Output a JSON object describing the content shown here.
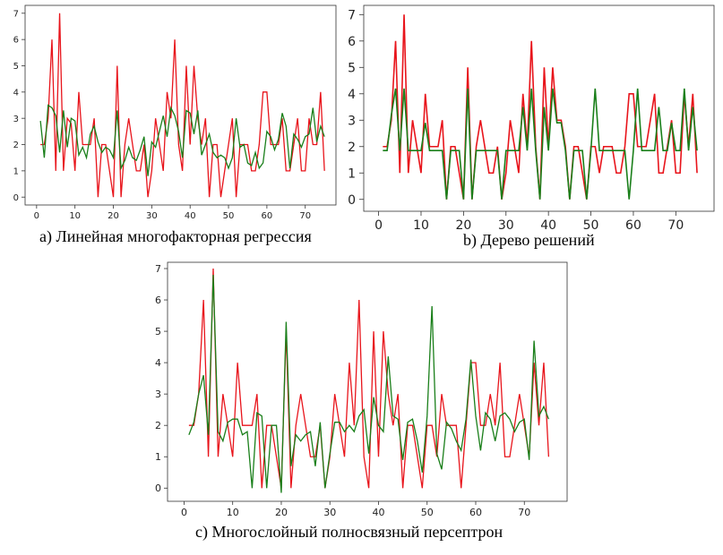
{
  "colors": {
    "actual": "#e8141b",
    "predicted": "#1a7f1a"
  },
  "chart_data": [
    {
      "type": "line",
      "caption": "a) Линейная многофакторная регрессия",
      "xlim": [
        -3,
        78
      ],
      "ylim": [
        -0.3,
        7.3
      ],
      "xticks": [
        0,
        10,
        20,
        30,
        40,
        50,
        60,
        70
      ],
      "yticks": [
        0,
        1,
        2,
        3,
        4,
        5,
        6,
        7
      ],
      "grid": false,
      "series": [
        {
          "values": [
            2,
            2,
            3,
            6,
            1,
            7,
            1,
            3,
            2.8,
            1,
            4,
            2,
            2,
            2,
            3,
            0,
            2,
            2,
            1,
            0,
            5,
            0,
            2,
            3,
            2,
            1,
            1,
            2,
            0,
            1,
            3,
            2,
            1,
            4,
            3,
            6,
            2,
            1,
            5,
            2,
            5,
            3,
            2,
            3,
            0,
            2,
            2,
            0,
            1,
            2,
            3,
            0,
            2,
            2,
            2,
            1,
            1,
            2,
            4,
            4,
            2,
            2,
            2,
            3,
            1,
            1,
            2,
            3,
            1,
            1,
            3,
            2,
            2,
            4,
            1
          ]
        },
        {
          "values": [
            2.9,
            1.5,
            3.5,
            3.4,
            3.1,
            1.7,
            3.3,
            1.9,
            3,
            2.9,
            1.6,
            1.9,
            1.5,
            2.4,
            2.7,
            2.1,
            1.7,
            1.9,
            1.8,
            1.5,
            3.3,
            1.1,
            1.4,
            1.9,
            1.5,
            1.4,
            1.8,
            2.3,
            0.8,
            2.1,
            1.9,
            2.5,
            3.1,
            2.3,
            3.4,
            3.1,
            2.5,
            1.5,
            3.3,
            3.2,
            2.4,
            3.3,
            1.6,
            2,
            2.4,
            1.7,
            1.5,
            1.6,
            1.5,
            1.1,
            1.5,
            3,
            1.9,
            2,
            1.3,
            1.2,
            1.7,
            1.1,
            1.3,
            2.5,
            2.3,
            1.8,
            2.2,
            3.2,
            2.7,
            1.1,
            2.4,
            2.2,
            1.9,
            2.3,
            2.4,
            3.4,
            2.1,
            2.7,
            2.3
          ]
        }
      ]
    },
    {
      "type": "line",
      "caption": "b) Дерево решений",
      "xlim": [
        -3.5,
        79
      ],
      "ylim": [
        -0.45,
        7.35
      ],
      "xticks": [
        0,
        10,
        20,
        30,
        40,
        50,
        60,
        70
      ],
      "yticks": [
        0,
        1,
        2,
        3,
        4,
        5,
        6,
        7
      ],
      "grid": false,
      "series": [
        {
          "values": [
            2,
            2,
            3,
            6,
            1,
            7,
            1,
            3,
            2,
            1,
            4,
            2,
            2,
            2,
            3,
            0,
            2,
            2,
            1,
            0,
            5,
            0,
            2,
            3,
            2,
            1,
            1,
            2,
            0,
            1,
            3,
            2,
            1,
            4,
            2,
            6,
            2,
            0,
            5,
            2,
            5,
            3,
            3,
            2,
            0,
            2,
            2,
            1,
            0,
            2,
            2,
            1,
            2,
            2,
            2,
            1,
            1,
            2,
            4,
            4,
            2,
            2,
            2,
            3,
            4,
            1,
            1,
            2,
            3,
            1,
            1,
            4,
            2,
            4,
            1
          ]
        },
        {
          "values": [
            1.85,
            1.85,
            3.2,
            4.2,
            1.85,
            4.2,
            1.85,
            1.85,
            1.85,
            1.85,
            2.9,
            1.85,
            1.85,
            1.85,
            1.85,
            0,
            1.85,
            1.85,
            1.85,
            0,
            4.2,
            0,
            1.85,
            1.85,
            1.85,
            1.85,
            1.85,
            1.85,
            0,
            1.85,
            1.85,
            1.85,
            1.85,
            3.5,
            1.85,
            4.2,
            1.85,
            0,
            3.5,
            1.85,
            4.2,
            2.9,
            2.9,
            1.85,
            0,
            1.85,
            1.85,
            1.85,
            0,
            1.85,
            4.2,
            1.85,
            1.85,
            1.85,
            1.85,
            1.85,
            1.85,
            1.85,
            0,
            1.85,
            4.2,
            1.85,
            1.85,
            1.85,
            1.85,
            3.5,
            1.85,
            1.85,
            2.9,
            1.85,
            1.85,
            4.2,
            1.85,
            3.5,
            1.85
          ]
        }
      ]
    },
    {
      "type": "line",
      "caption": "c) Многослойный полносвязный  персептрон",
      "xlim": [
        -3.4,
        78.8
      ],
      "ylim": [
        -0.42,
        7.2
      ],
      "xticks": [
        0,
        10,
        20,
        30,
        40,
        50,
        60,
        70
      ],
      "yticks": [
        0,
        1,
        2,
        3,
        4,
        5,
        6,
        7
      ],
      "grid": false,
      "series": [
        {
          "values": [
            2,
            2,
            3,
            6,
            1,
            7,
            1,
            3,
            2,
            1,
            4,
            2,
            2,
            2,
            3,
            0,
            2,
            2,
            1,
            0,
            5,
            0,
            2,
            3,
            2,
            1,
            1,
            2,
            0,
            1,
            3,
            2,
            1,
            4,
            2,
            6,
            1,
            0,
            5,
            1,
            5,
            3,
            2,
            3,
            0,
            2,
            2,
            1,
            0,
            2,
            2,
            1,
            3,
            2,
            2,
            2,
            0,
            2,
            4,
            4,
            2,
            2,
            3,
            2,
            4,
            1,
            1,
            2,
            3,
            2,
            1,
            4,
            2,
            4,
            1
          ]
        },
        {
          "values": [
            1.7,
            2.1,
            3,
            3.6,
            1.7,
            6.8,
            1.8,
            1.5,
            2.1,
            2.2,
            2.2,
            1.7,
            1.8,
            0,
            2.4,
            2.3,
            0,
            2,
            2,
            -0.15,
            5.3,
            0.7,
            1.7,
            1.5,
            1.7,
            1.8,
            0.7,
            2.1,
            0,
            1.1,
            2.1,
            2.1,
            1.8,
            2,
            1.8,
            2.3,
            2.5,
            1.1,
            2.9,
            2,
            1.8,
            4.2,
            2.3,
            2.2,
            0.9,
            2.1,
            2.2,
            1.5,
            0.5,
            2.3,
            5.8,
            1.1,
            0.6,
            2.1,
            1.9,
            1.5,
            1.2,
            2.2,
            4.1,
            2.3,
            1.2,
            2.4,
            2.2,
            1.5,
            2.3,
            2.4,
            2.2,
            1.8,
            2.1,
            2.2,
            0.9,
            4.7,
            2.3,
            2.6,
            2.2
          ]
        }
      ]
    }
  ]
}
